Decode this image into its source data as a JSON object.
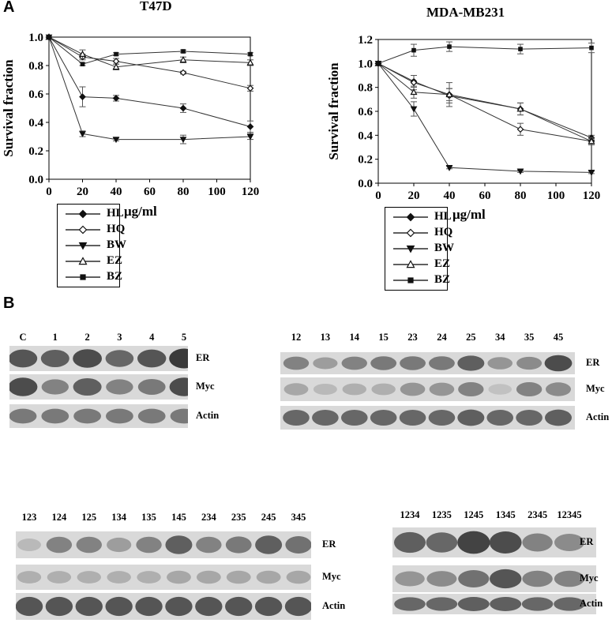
{
  "panel_labels": {
    "a": "A",
    "b": "B"
  },
  "charts": {
    "unit_label": "μg/ml",
    "ylabel": "Survival fraction",
    "colors": {
      "line": "#333333",
      "marker": "#111111",
      "axis": "#000000"
    }
  },
  "chart_data": [
    {
      "type": "line",
      "title": "T47D",
      "xlabel": "μg/ml",
      "ylabel": "Survival fraction",
      "x": [
        0,
        20,
        40,
        80,
        120
      ],
      "xticks": [
        "0",
        "20",
        "40",
        "60",
        "80",
        "100",
        "120"
      ],
      "yticks": [
        "0.0",
        "0.2",
        "0.4",
        "0.6",
        "0.8",
        "1.0"
      ],
      "xlim": [
        0,
        120
      ],
      "ylim": [
        0,
        1.0
      ],
      "grid": false,
      "legend": "below-left",
      "series": [
        {
          "name": "HL",
          "marker": "diamond-filled",
          "values": [
            1.0,
            0.58,
            0.57,
            0.5,
            0.37
          ],
          "errors": [
            0,
            0.07,
            0.02,
            0.03,
            0.04
          ]
        },
        {
          "name": "HQ",
          "marker": "diamond-open",
          "values": [
            1.0,
            0.86,
            0.83,
            0.75,
            0.64
          ],
          "errors": [
            0,
            0.02,
            0.02,
            0.01,
            0.02
          ]
        },
        {
          "name": "BW",
          "marker": "triangle-down-filled",
          "values": [
            1.0,
            0.32,
            0.28,
            0.28,
            0.3
          ],
          "errors": [
            0,
            0.02,
            0.01,
            0.03,
            0.02
          ]
        },
        {
          "name": "EZ",
          "marker": "triangle-open",
          "values": [
            1.0,
            0.88,
            0.79,
            0.84,
            0.82
          ],
          "errors": [
            0,
            0.03,
            0.02,
            0.02,
            0.02
          ]
        },
        {
          "name": "BZ",
          "marker": "square-filled",
          "values": [
            1.0,
            0.81,
            0.88,
            0.9,
            0.88
          ],
          "errors": [
            0,
            0.01,
            0.01,
            0.01,
            0.01
          ]
        }
      ]
    },
    {
      "type": "line",
      "title": "MDA-MB231",
      "xlabel": "μg/ml",
      "ylabel": "Survival fraction",
      "x": [
        0,
        20,
        40,
        80,
        120
      ],
      "xticks": [
        "0",
        "20",
        "40",
        "60",
        "80",
        "100",
        "120"
      ],
      "yticks": [
        "0.0",
        "0.2",
        "0.4",
        "0.6",
        "0.8",
        "1.0",
        "1.2"
      ],
      "xlim": [
        0,
        120
      ],
      "ylim": [
        0,
        1.2
      ],
      "grid": false,
      "legend": "below-left",
      "series": [
        {
          "name": "HL",
          "marker": "diamond-filled",
          "values": [
            1.0,
            0.85,
            0.73,
            0.62,
            0.38
          ],
          "errors": [
            0,
            0.05,
            0.06,
            0.05,
            0.02
          ]
        },
        {
          "name": "HQ",
          "marker": "diamond-open",
          "values": [
            1.0,
            0.84,
            0.74,
            0.45,
            0.35
          ],
          "errors": [
            0,
            0.06,
            0.05,
            0.05,
            0.02
          ]
        },
        {
          "name": "BW",
          "marker": "triangle-down-filled",
          "values": [
            1.0,
            0.62,
            0.13,
            0.1,
            0.09
          ],
          "errors": [
            0,
            0.06,
            0.01,
            0.01,
            0.01
          ]
        },
        {
          "name": "EZ",
          "marker": "triangle-open",
          "values": [
            1.0,
            0.76,
            0.74,
            0.62,
            0.35
          ],
          "errors": [
            0,
            0.05,
            0.1,
            0.05,
            0.03
          ]
        },
        {
          "name": "BZ",
          "marker": "square-filled",
          "values": [
            1.0,
            1.11,
            1.14,
            1.12,
            1.13
          ],
          "errors": [
            0,
            0.05,
            0.04,
            0.04,
            0.04
          ]
        }
      ]
    }
  ],
  "blots": [
    {
      "lanes": [
        "C",
        "1",
        "2",
        "3",
        "4",
        "5"
      ],
      "bands": [
        {
          "label": "ER",
          "intensity": [
            0.8,
            0.75,
            0.85,
            0.7,
            0.8,
            0.95
          ]
        },
        {
          "label": "Myc",
          "intensity": [
            0.85,
            0.55,
            0.75,
            0.55,
            0.6,
            0.85
          ]
        },
        {
          "label": "Actin",
          "intensity": [
            0.6,
            0.6,
            0.6,
            0.6,
            0.6,
            0.6
          ]
        }
      ]
    },
    {
      "lanes": [
        "12",
        "13",
        "14",
        "15",
        "23",
        "24",
        "25",
        "34",
        "35",
        "45"
      ],
      "bands": [
        {
          "label": "ER",
          "intensity": [
            0.55,
            0.4,
            0.55,
            0.6,
            0.6,
            0.6,
            0.75,
            0.45,
            0.5,
            0.85
          ]
        },
        {
          "label": "Myc",
          "intensity": [
            0.35,
            0.25,
            0.3,
            0.3,
            0.45,
            0.45,
            0.55,
            0.2,
            0.55,
            0.5
          ]
        },
        {
          "label": "Actin",
          "intensity": [
            0.7,
            0.7,
            0.7,
            0.7,
            0.7,
            0.7,
            0.75,
            0.7,
            0.7,
            0.75
          ]
        }
      ]
    },
    {
      "lanes": [
        "123",
        "124",
        "125",
        "134",
        "135",
        "145",
        "234",
        "235",
        "245",
        "345"
      ],
      "bands": [
        {
          "label": "ER",
          "intensity": [
            0.25,
            0.55,
            0.55,
            0.4,
            0.55,
            0.75,
            0.55,
            0.6,
            0.75,
            0.65
          ]
        },
        {
          "label": "Myc",
          "intensity": [
            0.3,
            0.3,
            0.3,
            0.3,
            0.3,
            0.35,
            0.35,
            0.35,
            0.35,
            0.35
          ]
        },
        {
          "label": "Actin",
          "intensity": [
            0.8,
            0.8,
            0.8,
            0.8,
            0.8,
            0.8,
            0.8,
            0.8,
            0.8,
            0.8
          ]
        }
      ]
    },
    {
      "lanes": [
        "1234",
        "1235",
        "1245",
        "1345",
        "2345",
        "12345"
      ],
      "bands": [
        {
          "label": "ER",
          "intensity": [
            0.75,
            0.7,
            0.9,
            0.85,
            0.55,
            0.5
          ]
        },
        {
          "label": "Myc",
          "intensity": [
            0.45,
            0.5,
            0.65,
            0.8,
            0.55,
            0.55
          ]
        },
        {
          "label": "Actin",
          "intensity": [
            0.7,
            0.7,
            0.75,
            0.75,
            0.7,
            0.7
          ]
        }
      ]
    }
  ]
}
